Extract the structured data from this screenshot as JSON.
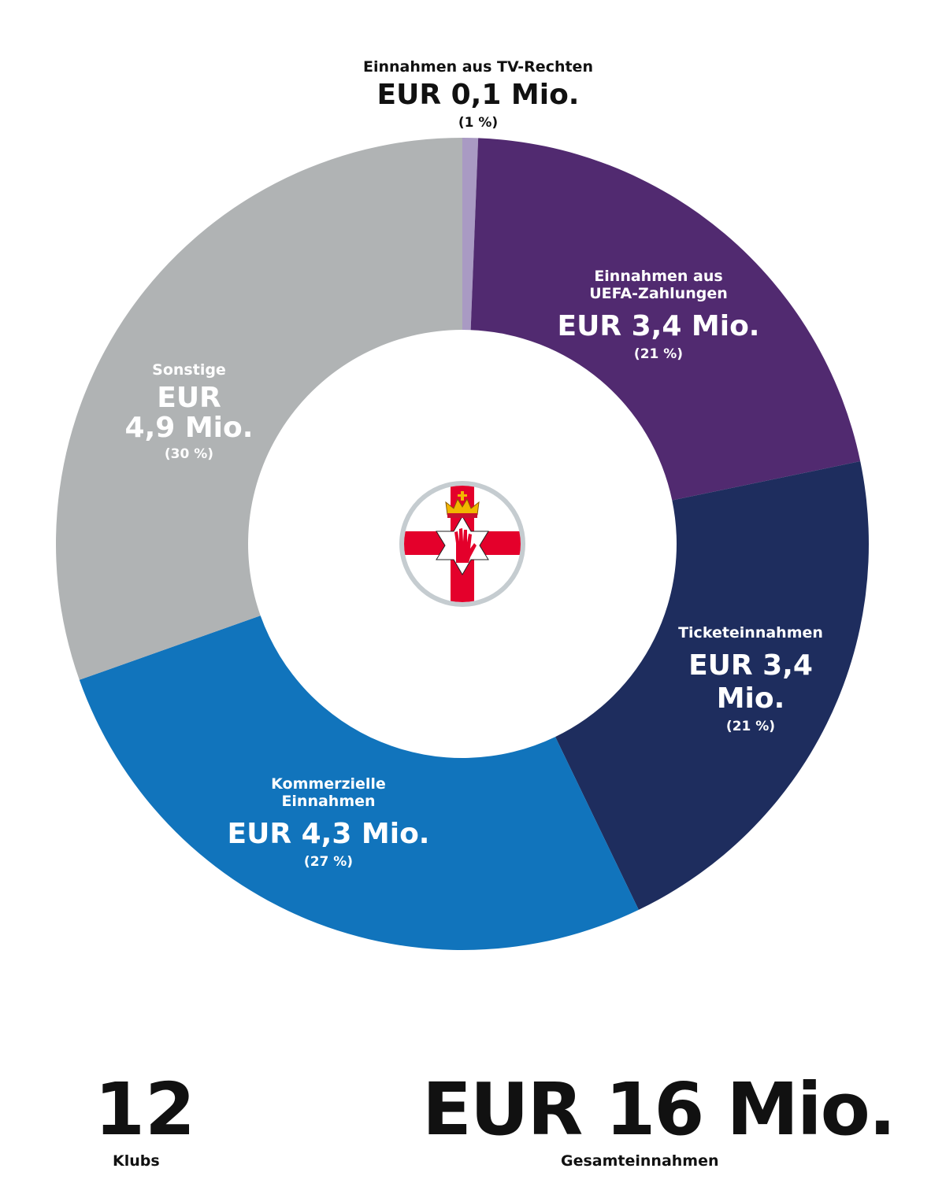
{
  "chart_data": {
    "type": "pie",
    "variant": "donut",
    "slices": [
      {
        "category": "Einnahmen aus TV-Rechten",
        "value": 0.1,
        "value_label": "EUR 0,1 Mio.",
        "percent_label": "(1 %)",
        "percent": 1,
        "color": "#a99ac3"
      },
      {
        "category": "Einnahmen aus UEFA-Zahlungen",
        "value": 3.4,
        "value_label": "EUR 3,4 Mio.",
        "percent_label": "(21 %)",
        "percent": 21,
        "color": "#512a70"
      },
      {
        "category": "Ticketeinnahmen",
        "value": 3.4,
        "value_label": "EUR 3,4 Mio.",
        "percent_label": "(21 %)",
        "percent": 21,
        "color": "#1e2d5e"
      },
      {
        "category": "Kommerzielle Einnahmen",
        "value": 4.3,
        "value_label": "EUR 4,3 Mio.",
        "percent_label": "(27 %)",
        "percent": 27,
        "color": "#1174bc"
      },
      {
        "category": "Sonstige",
        "value": 4.9,
        "value_label": "EUR 4,9 Mio.",
        "percent_label": "(30 %)",
        "percent": 30,
        "color": "#b0b3b4"
      }
    ]
  },
  "labels": {
    "tv": {
      "cat": "Einnahmen aus TV-Rechten",
      "val": "EUR 0,1 Mio.",
      "pct": "(1 %)"
    },
    "uefa": {
      "cat1": "Einnahmen aus",
      "cat2": "UEFA-Zahlungen",
      "val": "EUR 3,4 Mio.",
      "pct": "(21 %)"
    },
    "ticket": {
      "cat": "Ticketeinnahmen",
      "val": "EUR 3,4 Mio.",
      "pct": "(21 %)"
    },
    "commercial": {
      "cat1": "Kommerzielle",
      "cat2": "Einnahmen",
      "val": "EUR 4,3 Mio.",
      "pct": "(27 %)"
    },
    "other": {
      "cat": "Sonstige",
      "val1": "EUR",
      "val2": "4,9 Mio.",
      "pct": "(30 %)"
    }
  },
  "summary": {
    "clubs_value": "12",
    "clubs_label": "Klubs",
    "total_value": "EUR 16 Mio.",
    "total_label": "Gesamteinnahmen"
  },
  "flag": {
    "name": "ulster-banner-icon",
    "cross_color": "#e4002b",
    "crown_color": "#f2b600",
    "ring_color": "#c5ccd0"
  }
}
